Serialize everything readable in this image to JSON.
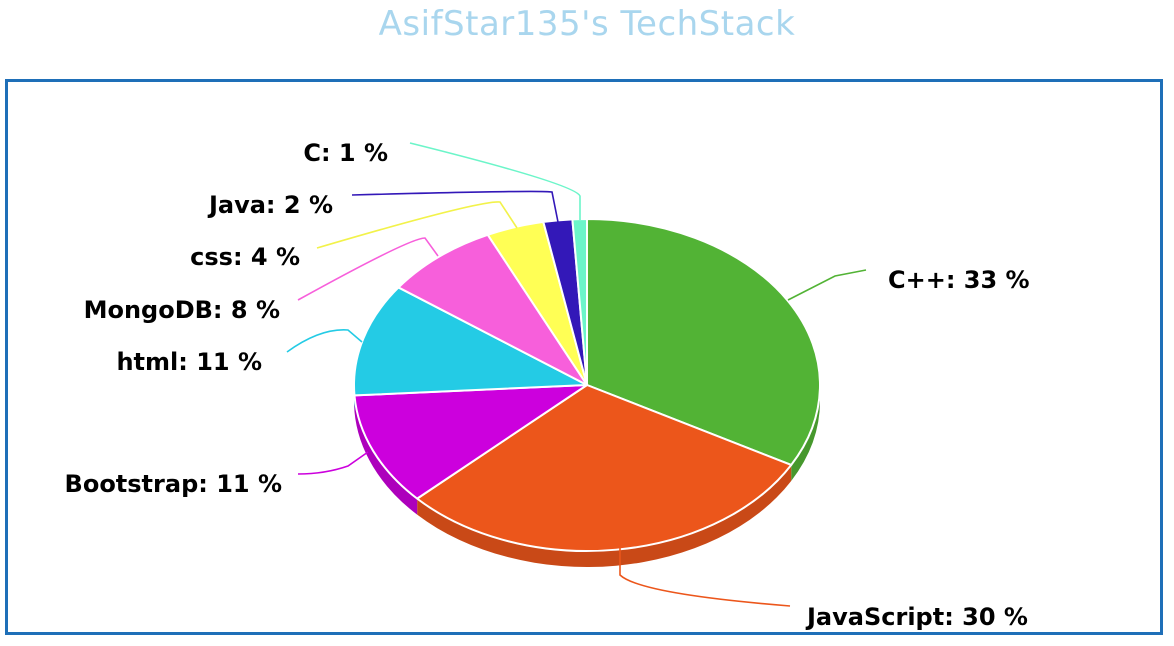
{
  "chart_data": {
    "type": "pie",
    "title": "AsifStar135's TechStack",
    "slices": [
      {
        "label": "C++",
        "value": 33,
        "color": "#52b335",
        "text": "C++: 33 %"
      },
      {
        "label": "JavaScript",
        "value": 30,
        "color": "#ec561b",
        "text": "JavaScript: 30 %"
      },
      {
        "label": "Bootstrap",
        "value": 11,
        "color": "#cc00dd",
        "text": "Bootstrap: 11 %"
      },
      {
        "label": "html",
        "value": 11,
        "color": "#24cbe5",
        "text": "html: 11 %"
      },
      {
        "label": "MongoDB",
        "value": 8,
        "color": "#f75fdb",
        "text": "MongoDB: 8 %"
      },
      {
        "label": "css",
        "value": 4,
        "color": "#ffff55",
        "text": "css: 4 %"
      },
      {
        "label": "Java",
        "value": 2,
        "color": "#3318b8",
        "text": "Java: 2 %"
      },
      {
        "label": "C",
        "value": 1,
        "color": "#6cf5c9",
        "text": "C: 1 %"
      }
    ],
    "legend": "none",
    "style": "3d-pie-with-connector-labels",
    "frame_color": "#1e6fb8",
    "title_color": "#a9d6ee"
  }
}
